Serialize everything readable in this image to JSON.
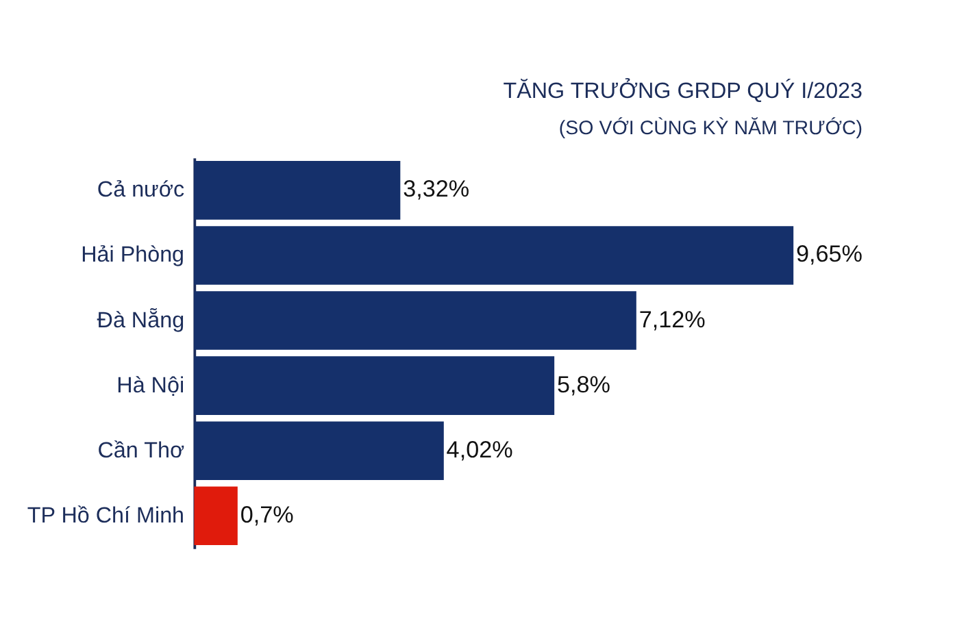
{
  "chart_data": {
    "type": "bar",
    "orientation": "horizontal",
    "title": "TĂNG TRƯỞNG GRDP QUÝ I/2023",
    "subtitle": "(SO VỚI CÙNG KỲ NĂM TRƯỚC)",
    "categories": [
      "Cả nước",
      "Hải Phòng",
      "Đà Nẵng",
      "Hà Nội",
      "Cần Thơ",
      "TP Hồ Chí Minh"
    ],
    "values": [
      3.32,
      9.65,
      7.12,
      5.8,
      4.02,
      0.7
    ],
    "colors": [
      "#15306b",
      "#15306b",
      "#15306b",
      "#15306b",
      "#15306b",
      "#e01b0c"
    ],
    "value_labels": [
      "3,32%",
      "9,65%",
      "7,12%",
      "5,8%",
      "4,02%",
      "0,7%"
    ]
  }
}
